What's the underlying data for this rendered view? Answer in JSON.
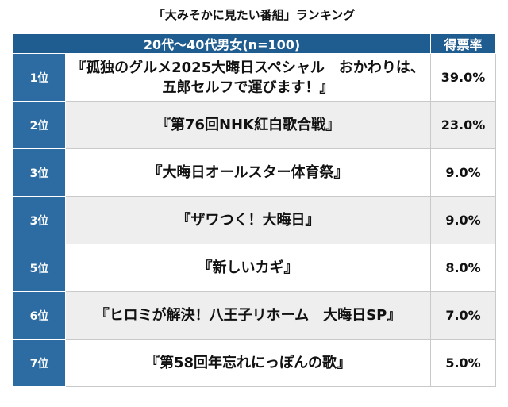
{
  "title": "「大みそかに見たい番組」ランキング",
  "chart_data": {
    "type": "table",
    "header": {
      "group": "20代〜40代男女(n=100)",
      "percent": "得票率"
    },
    "rows": [
      {
        "rank": "1位",
        "program": "『孤独のグルメ2025大晦日スペシャル　おかわりは、五郎セルフで運びます！』",
        "percent": "39.0%"
      },
      {
        "rank": "2位",
        "program": "『第76回NHK紅白歌合戦』",
        "percent": "23.0%"
      },
      {
        "rank": "3位",
        "program": "『大晦日オールスター体育祭』",
        "percent": "9.0%"
      },
      {
        "rank": "3位",
        "program": "『ザワつく！大晦日』",
        "percent": "9.0%"
      },
      {
        "rank": "5位",
        "program": "『新しいカギ』",
        "percent": "8.0%"
      },
      {
        "rank": "6位",
        "program": "『ヒロミが解決！八王子リホーム　大晦日SP』",
        "percent": "7.0%"
      },
      {
        "rank": "7位",
        "program": "『第58回年忘れにっぽんの歌』",
        "percent": "5.0%"
      }
    ]
  }
}
